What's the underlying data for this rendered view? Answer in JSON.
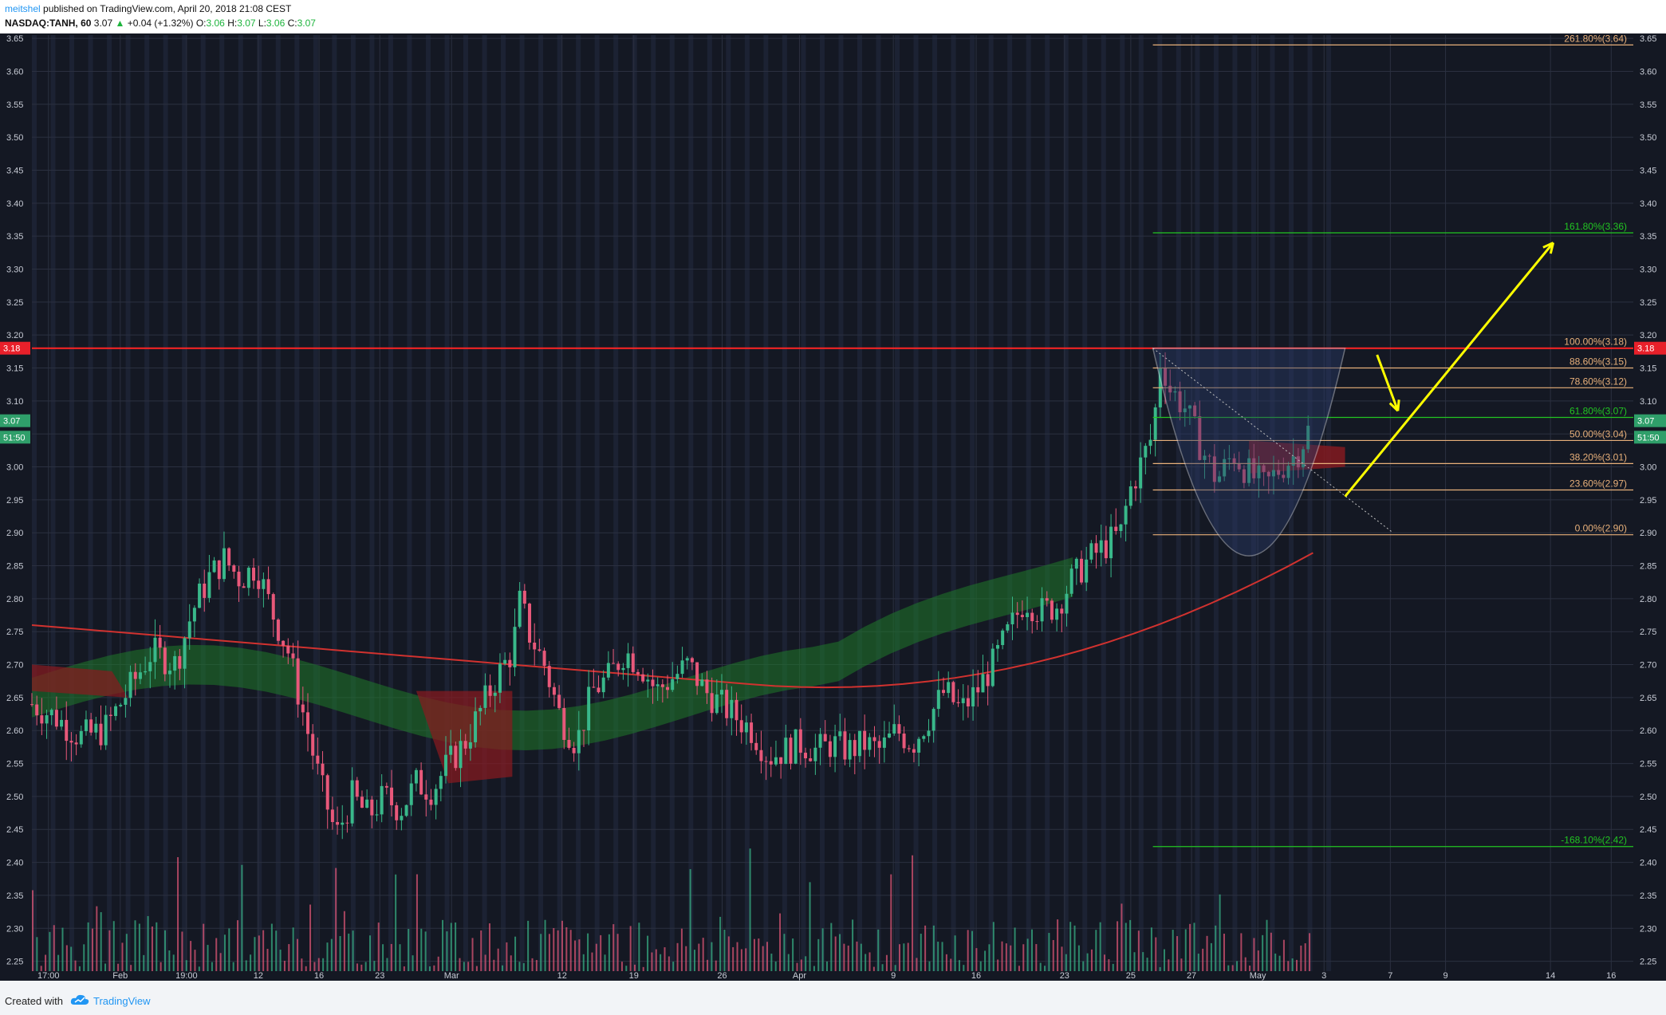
{
  "header": {
    "author": "meitshel",
    "published": "published on TradingView.com, April 20, 2018 21:08 CEST",
    "symbol": "NASDAQ:TANH, 60",
    "last": "3.07",
    "change_arrow": "▲",
    "change": "+0.04 (+1.32%)",
    "o_label": "O:",
    "o_value": "3.06",
    "h_label": "H:",
    "h_value": "3.07",
    "l_label": "L:",
    "l_value": "3.06",
    "c_label": "C:",
    "c_value": "3.07"
  },
  "footer": {
    "created_with": "Created with",
    "logo_icon": "tradingview-cloud-icon",
    "brand": "TradingView"
  },
  "colors": {
    "background": "#141823",
    "grid": "#2b3040",
    "axis_text": "#c8ccd6",
    "up": "#39b88a",
    "down": "#e8587a",
    "kumo_bull": "#1f7a2a",
    "kumo_bear": "#8a1a1f",
    "resistance": "#ff2424",
    "fib_orange": "#e8b07a",
    "fib_green": "#22c522",
    "arrow": "#ffff00",
    "ma": "#d1322f"
  },
  "chart_data": {
    "type": "candlestick",
    "symbol": "NASDAQ:TANH",
    "interval": "60",
    "yaxis": {
      "ticks": [
        "3.65",
        "3.60",
        "3.55",
        "3.50",
        "3.45",
        "3.40",
        "3.35",
        "3.30",
        "3.25",
        "3.20",
        "3.15",
        "3.10",
        "3.05",
        "3.00",
        "2.95",
        "2.90",
        "2.85",
        "2.80",
        "2.75",
        "2.70",
        "2.65",
        "2.60",
        "2.55",
        "2.50",
        "2.45",
        "2.40",
        "2.35",
        "2.30",
        "2.25"
      ],
      "ylim": [
        2.235,
        3.655
      ]
    },
    "xaxis": {
      "ticks": [
        "17:00",
        "Feb",
        "19:00",
        "12",
        "16",
        "23",
        "Mar",
        "12",
        "19",
        "26",
        "Apr",
        "9",
        "16",
        "23",
        "25",
        "27",
        "May",
        "3",
        "7",
        "9",
        "14",
        "16"
      ]
    },
    "price_labels": [
      {
        "value": 3.18,
        "text": "3.18",
        "color": "#e8202a"
      },
      {
        "value": 3.07,
        "text": "3.07",
        "color": "#2f9f6a"
      },
      {
        "value": 3.045,
        "text": "51:50",
        "color": "#2f9f6a"
      }
    ],
    "resistance_line": 3.18,
    "fibonacci": [
      {
        "value": 3.64,
        "label": "261.80%(3.64)",
        "color": "#e8b07a"
      },
      {
        "value": 3.355,
        "label": "161.80%(3.36)",
        "color": "#22c522"
      },
      {
        "value": 3.18,
        "label": "100.00%(3.18)",
        "color": "#e8b07a"
      },
      {
        "value": 3.15,
        "label": "88.60%(3.15)",
        "color": "#e8b07a"
      },
      {
        "value": 3.12,
        "label": "78.60%(3.12)",
        "color": "#e8b07a"
      },
      {
        "value": 3.075,
        "label": "61.80%(3.07)",
        "color": "#22c522"
      },
      {
        "value": 3.04,
        "label": "50.00%(3.04)",
        "color": "#e8b07a"
      },
      {
        "value": 3.005,
        "label": "38.20%(3.01)",
        "color": "#e8b07a"
      },
      {
        "value": 2.965,
        "label": "23.60%(2.97)",
        "color": "#e8b07a"
      },
      {
        "value": 2.897,
        "label": "0.00%(2.90)",
        "color": "#e8b07a"
      },
      {
        "value": 2.424,
        "label": "-168.10%(2.42)",
        "color": "#22c522"
      }
    ],
    "price_path": [
      [
        0,
        2.64
      ],
      [
        0.015,
        2.62
      ],
      [
        0.03,
        2.59
      ],
      [
        0.045,
        2.6
      ],
      [
        0.06,
        2.66
      ],
      [
        0.075,
        2.72
      ],
      [
        0.09,
        2.7
      ],
      [
        0.1,
        2.78
      ],
      [
        0.11,
        2.83
      ],
      [
        0.12,
        2.86
      ],
      [
        0.13,
        2.83
      ],
      [
        0.14,
        2.85
      ],
      [
        0.15,
        2.78
      ],
      [
        0.16,
        2.72
      ],
      [
        0.17,
        2.62
      ],
      [
        0.18,
        2.52
      ],
      [
        0.19,
        2.44
      ],
      [
        0.2,
        2.5
      ],
      [
        0.21,
        2.47
      ],
      [
        0.22,
        2.5
      ],
      [
        0.23,
        2.48
      ],
      [
        0.24,
        2.52
      ],
      [
        0.25,
        2.51
      ],
      [
        0.26,
        2.55
      ],
      [
        0.27,
        2.58
      ],
      [
        0.28,
        2.63
      ],
      [
        0.29,
        2.68
      ],
      [
        0.3,
        2.72
      ],
      [
        0.305,
        2.8
      ],
      [
        0.31,
        2.75
      ],
      [
        0.32,
        2.7
      ],
      [
        0.33,
        2.62
      ],
      [
        0.34,
        2.58
      ],
      [
        0.35,
        2.66
      ],
      [
        0.36,
        2.68
      ],
      [
        0.37,
        2.72
      ],
      [
        0.38,
        2.7
      ],
      [
        0.39,
        2.66
      ],
      [
        0.4,
        2.68
      ],
      [
        0.41,
        2.7
      ],
      [
        0.42,
        2.66
      ],
      [
        0.43,
        2.64
      ],
      [
        0.44,
        2.62
      ],
      [
        0.45,
        2.6
      ],
      [
        0.46,
        2.56
      ],
      [
        0.47,
        2.57
      ],
      [
        0.48,
        2.58
      ],
      [
        0.49,
        2.57
      ],
      [
        0.5,
        2.58
      ],
      [
        0.51,
        2.57
      ],
      [
        0.52,
        2.58
      ],
      [
        0.53,
        2.57
      ],
      [
        0.54,
        2.6
      ],
      [
        0.55,
        2.58
      ],
      [
        0.56,
        2.62
      ],
      [
        0.57,
        2.66
      ],
      [
        0.58,
        2.63
      ],
      [
        0.59,
        2.66
      ],
      [
        0.6,
        2.7
      ],
      [
        0.61,
        2.75
      ],
      [
        0.62,
        2.8
      ],
      [
        0.63,
        2.78
      ],
      [
        0.64,
        2.79
      ],
      [
        0.65,
        2.83
      ],
      [
        0.66,
        2.86
      ],
      [
        0.67,
        2.88
      ],
      [
        0.68,
        2.9
      ],
      [
        0.685,
        2.96
      ],
      [
        0.69,
        2.99
      ],
      [
        0.7,
        3.05
      ],
      [
        0.705,
        3.17
      ],
      [
        0.71,
        3.12
      ],
      [
        0.72,
        3.09
      ],
      [
        0.73,
        3.03
      ],
      [
        0.74,
        2.98
      ],
      [
        0.75,
        3.02
      ],
      [
        0.76,
        2.99
      ],
      [
        0.77,
        2.97
      ],
      [
        0.78,
        3.0
      ],
      [
        0.79,
        3.02
      ],
      [
        0.8,
        3.07
      ]
    ],
    "volume_note": "volume histogram along the bottom",
    "annotations": [
      {
        "type": "cup-and-handle",
        "shape": "parabola",
        "from": 3.18,
        "bottom": 2.92
      },
      {
        "type": "arrow",
        "direction": "down",
        "from": 3.17,
        "to": 3.08
      },
      {
        "type": "arrow",
        "direction": "up",
        "from": 2.95,
        "to": 3.34
      }
    ]
  }
}
